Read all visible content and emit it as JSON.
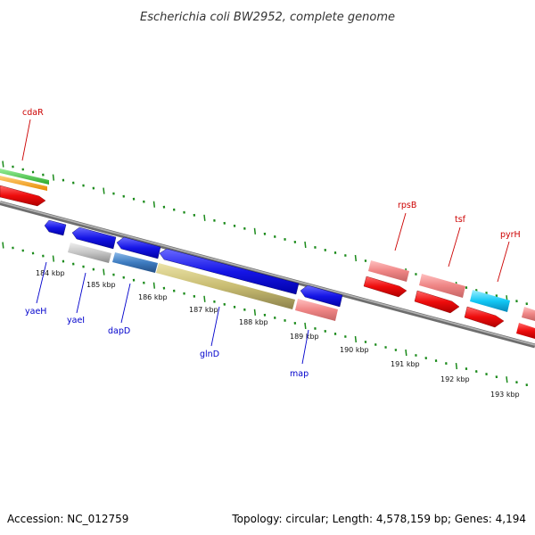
{
  "title": "Escherichia coli BW2952, complete genome",
  "footer": {
    "accession": "Accession: NC_012759",
    "summary": "Topology: circular; Length: 4,578,159 bp; Genes: 4,194"
  },
  "colors": {
    "backbone": "#8a8a8a",
    "ticks": "#1a8a1a",
    "forward_label": "#cc0000",
    "reverse_label": "#0000cc"
  },
  "scale_labels": [
    "184 kbp",
    "185 kbp",
    "186 kbp",
    "187 kbp",
    "188 kbp",
    "189 kbp",
    "190 kbp",
    "191 kbp",
    "192 kbp",
    "193 kbp"
  ],
  "genes": {
    "forward": [
      "cdaR",
      "rpsB",
      "tsf",
      "pyrH"
    ],
    "reverse": [
      "yaeH",
      "yaeI",
      "dapD",
      "glnD",
      "map"
    ]
  }
}
